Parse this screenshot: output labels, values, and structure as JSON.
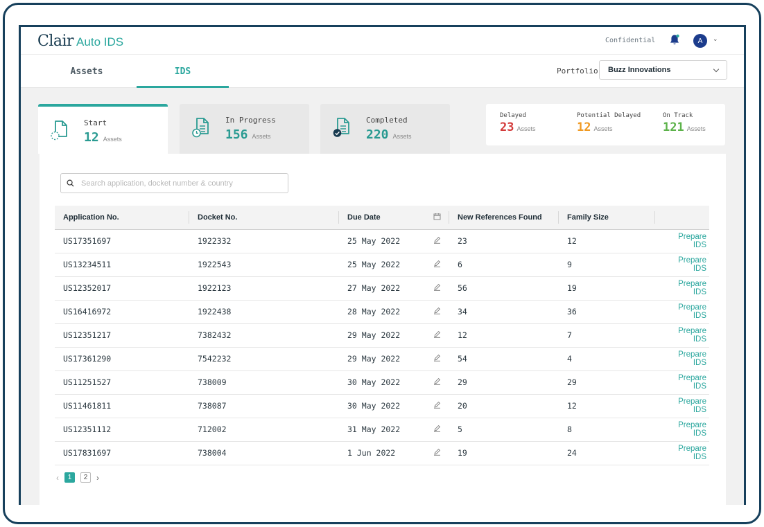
{
  "header": {
    "logo_main": "Clair",
    "logo_sub": "Auto IDS",
    "confidential": "Confidential",
    "avatar_initial": "A"
  },
  "nav": {
    "tabs": [
      {
        "label": "Assets",
        "active": false
      },
      {
        "label": "IDS",
        "active": true
      }
    ],
    "portfolio_label": "Portfolio :",
    "portfolio_value": "Buzz Innovations"
  },
  "stages": [
    {
      "label": "Start",
      "count": "12",
      "unit": "Assets",
      "icon": "document-dashed-icon",
      "active": true
    },
    {
      "label": "In Progress",
      "count": "156",
      "unit": "Assets",
      "icon": "document-clock-icon",
      "active": false
    },
    {
      "label": "Completed",
      "count": "220",
      "unit": "Assets",
      "icon": "document-check-icon",
      "active": false
    }
  ],
  "summary": [
    {
      "label": "Delayed",
      "count": "23",
      "unit": "Assets",
      "color": "#d33a3a"
    },
    {
      "label": "Potential Delayed",
      "count": "12",
      "unit": "Assets",
      "color": "#f09a23"
    },
    {
      "label": "On Track",
      "count": "121",
      "unit": "Assets",
      "color": "#5cb24a"
    }
  ],
  "search": {
    "placeholder": "Search application, docket number & country"
  },
  "table": {
    "headers": [
      "Application No.",
      "Docket No.",
      "Due Date",
      "",
      "New References Found",
      "Family Size",
      ""
    ],
    "action_label": "Prepare IDS",
    "rows": [
      {
        "app": "US17351697",
        "docket": "1922332",
        "due": "25 May 2022",
        "refs": "23",
        "family": "12"
      },
      {
        "app": "US13234511",
        "docket": "1922543",
        "due": "25 May 2022",
        "refs": "6",
        "family": "9"
      },
      {
        "app": "US12352017",
        "docket": "1922123",
        "due": "27 May 2022",
        "refs": "56",
        "family": "19"
      },
      {
        "app": "US16416972",
        "docket": "1922438",
        "due": "28 May 2022",
        "refs": "34",
        "family": "36"
      },
      {
        "app": "US12351217",
        "docket": "7382432",
        "due": "29 May 2022",
        "refs": "12",
        "family": "7"
      },
      {
        "app": "US17361290",
        "docket": "7542232",
        "due": "29 May 2022",
        "refs": "54",
        "family": "4"
      },
      {
        "app": "US11251527",
        "docket": "738009",
        "due": "30 May 2022",
        "refs": "29",
        "family": "29"
      },
      {
        "app": "US11461811",
        "docket": "738087",
        "due": "30 May 2022",
        "refs": "20",
        "family": "12"
      },
      {
        "app": "US12351112",
        "docket": "712002",
        "due": "31 May 2022",
        "refs": "5",
        "family": "8"
      },
      {
        "app": "US17831697",
        "docket": "738004",
        "due": "1 Jun 2022",
        "refs": "19",
        "family": "24"
      }
    ]
  },
  "pagination": {
    "pages": [
      "1",
      "2"
    ],
    "current": "1"
  },
  "colors": {
    "accent": "#2ba79e",
    "frame": "#17405c"
  }
}
